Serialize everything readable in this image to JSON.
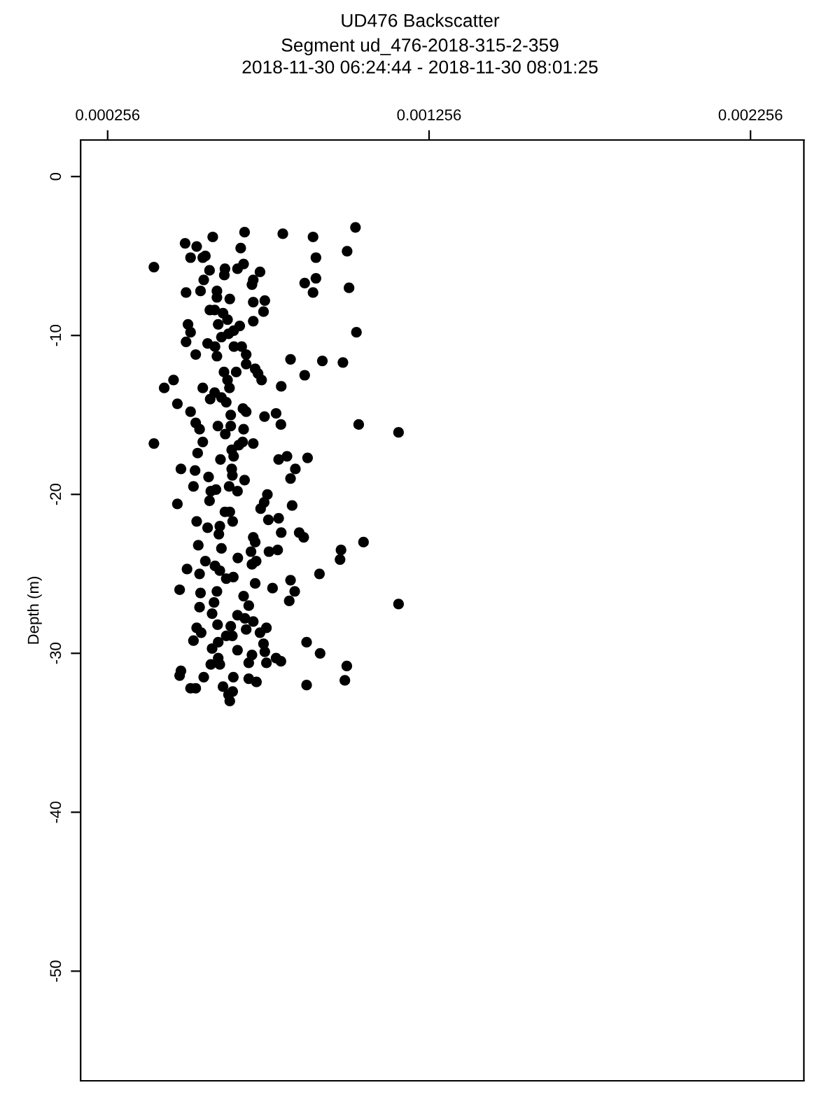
{
  "chart_data": {
    "type": "scatter",
    "title": "UD476 Backscatter",
    "subtitle": "Segment ud_476-2018-315-2-359\n2018-11-30 06:24:44 - 2018-11-30 08:01:25",
    "ylabel": "Depth (m)",
    "xlim": [
      0.000172,
      0.002422
    ],
    "xticks": [
      0.000256,
      0.001256,
      0.002256
    ],
    "ylim": [
      -56.9,
      2.3
    ],
    "yticks": [
      0,
      -10,
      -20,
      -30,
      -40,
      -50
    ],
    "marker": "circle",
    "series": [
      {
        "color": "#000000",
        "x": [
          0.001027,
          0.000682,
          0.000801,
          0.000895,
          0.000583,
          0.000497,
          0.000533,
          0.00067,
          0.001001,
          0.000514,
          0.000552,
          0.00056,
          0.000904,
          0.0004,
          0.000679,
          0.00066,
          0.00073,
          0.000573,
          0.000621,
          0.000619,
          0.000555,
          0.000904,
          0.000869,
          0.000709,
          0.000705,
          0.001007,
          0.0005,
          0.000545,
          0.000596,
          0.000895,
          0.000636,
          0.000596,
          0.000745,
          0.000709,
          0.000574,
          0.000589,
          0.000615,
          0.000741,
          0.000629,
          0.0006,
          0.000506,
          0.000709,
          0.000667,
          0.000648,
          0.000514,
          0.000632,
          0.00061,
          0.0005,
          0.00103,
          0.000567,
          0.00059,
          0.000649,
          0.000673,
          0.000596,
          0.00053,
          0.000687,
          0.000687,
          0.000825,
          0.000924,
          0.000988,
          0.000715,
          0.000618,
          0.000656,
          0.000724,
          0.000869,
          0.000461,
          0.000629,
          0.000735,
          0.000432,
          0.000552,
          0.000796,
          0.000635,
          0.000589,
          0.000575,
          0.00061,
          0.000473,
          0.000625,
          0.000677,
          0.000514,
          0.000687,
          0.000639,
          0.000744,
          0.00078,
          0.00053,
          0.000795,
          0.000599,
          0.000639,
          0.000542,
          0.000679,
          0.001037,
          0.001161,
          0.000622,
          0.0004,
          0.000552,
          0.000676,
          0.000709,
          0.000642,
          0.000664,
          0.000536,
          0.000607,
          0.000648,
          0.000788,
          0.000814,
          0.000878,
          0.000484,
          0.000528,
          0.00057,
          0.000642,
          0.000644,
          0.00084,
          0.000825,
          0.000523,
          0.000593,
          0.000577,
          0.000634,
          0.00066,
          0.000682,
          0.000473,
          0.000573,
          0.000753,
          0.000743,
          0.000732,
          0.00083,
          0.000621,
          0.000636,
          0.000645,
          0.000533,
          0.000567,
          0.000605,
          0.000602,
          0.000756,
          0.000788,
          0.000796,
          0.000852,
          0.000866,
          0.000709,
          0.000715,
          0.000538,
          0.00061,
          0.000702,
          0.000661,
          0.000758,
          0.000785,
          0.00056,
          0.00059,
          0.000605,
          0.000718,
          0.000705,
          0.000982,
          0.000979,
          0.001052,
          0.000503,
          0.000542,
          0.000625,
          0.000647,
          0.000915,
          0.000825,
          0.000715,
          0.00048,
          0.000545,
          0.000596,
          0.000679,
          0.000769,
          0.000838,
          0.000821,
          0.001161,
          0.000587,
          0.000542,
          0.000581,
          0.000695,
          0.00066,
          0.000683,
          0.000709,
          0.000598,
          0.000533,
          0.000639,
          0.000687,
          0.00075,
          0.00073,
          0.000547,
          0.000523,
          0.0006,
          0.000625,
          0.000644,
          0.000581,
          0.00066,
          0.000741,
          0.000745,
          0.000875,
          0.000917,
          0.000705,
          0.0006,
          0.000577,
          0.000605,
          0.000695,
          0.00075,
          0.00078,
          0.000795,
          0.001,
          0.000484,
          0.00048,
          0.000555,
          0.000647,
          0.000695,
          0.000719,
          0.000994,
          0.000875,
          0.000514,
          0.00053,
          0.000615,
          0.000632,
          0.000645,
          0.000636
        ],
        "values": [
          -3.2,
          -3.5,
          -3.6,
          -3.8,
          -3.8,
          -4.2,
          -4.4,
          -4.5,
          -4.7,
          -5.1,
          -5.1,
          -5.0,
          -5.1,
          -5.7,
          -5.5,
          -5.8,
          -6.0,
          -5.9,
          -5.8,
          -6.2,
          -6.5,
          -6.4,
          -6.7,
          -6.5,
          -6.8,
          -7.0,
          -7.3,
          -7.2,
          -7.2,
          -7.3,
          -7.7,
          -7.6,
          -7.8,
          -7.9,
          -8.4,
          -8.4,
          -8.6,
          -8.5,
          -9.0,
          -9.3,
          -9.3,
          -9.1,
          -9.4,
          -9.7,
          -9.8,
          -9.9,
          -10.1,
          -10.4,
          -9.8,
          -10.5,
          -10.7,
          -10.7,
          -10.7,
          -11.3,
          -11.2,
          -11.2,
          -11.8,
          -11.5,
          -11.6,
          -11.7,
          -12.1,
          -12.3,
          -12.3,
          -12.4,
          -12.5,
          -12.8,
          -12.8,
          -12.8,
          -13.3,
          -13.3,
          -13.2,
          -13.3,
          -13.6,
          -14.0,
          -13.9,
          -14.3,
          -14.2,
          -14.6,
          -14.8,
          -14.8,
          -15.0,
          -15.1,
          -14.9,
          -15.5,
          -15.6,
          -15.7,
          -15.7,
          -15.9,
          -15.9,
          -15.6,
          -16.1,
          -16.2,
          -16.8,
          -16.7,
          -16.7,
          -16.8,
          -17.2,
          -16.9,
          -17.4,
          -17.8,
          -17.6,
          -17.8,
          -17.6,
          -17.7,
          -18.4,
          -18.5,
          -18.9,
          -18.4,
          -18.8,
          -18.4,
          -19.0,
          -19.5,
          -19.7,
          -19.8,
          -19.5,
          -19.8,
          -19.1,
          -20.6,
          -20.4,
          -20.0,
          -20.5,
          -20.9,
          -20.7,
          -21.1,
          -21.1,
          -21.7,
          -21.7,
          -22.1,
          -22.0,
          -22.5,
          -21.6,
          -21.5,
          -22.4,
          -22.4,
          -22.7,
          -22.7,
          -23.0,
          -23.2,
          -23.4,
          -23.6,
          -24.0,
          -23.6,
          -23.5,
          -24.2,
          -24.5,
          -24.8,
          -24.2,
          -24.4,
          -23.5,
          -24.1,
          -23.0,
          -24.7,
          -25.0,
          -25.3,
          -25.2,
          -25.0,
          -25.4,
          -25.6,
          -26.0,
          -26.2,
          -26.1,
          -26.4,
          -25.9,
          -26.1,
          -26.7,
          -26.9,
          -26.8,
          -27.1,
          -27.5,
          -27.0,
          -27.6,
          -27.8,
          -28.0,
          -28.2,
          -28.4,
          -28.3,
          -28.5,
          -28.4,
          -28.7,
          -28.7,
          -29.2,
          -29.3,
          -28.9,
          -28.9,
          -29.7,
          -29.8,
          -29.4,
          -29.9,
          -29.3,
          -30.0,
          -30.1,
          -30.3,
          -30.7,
          -30.7,
          -30.6,
          -30.6,
          -30.3,
          -30.5,
          -30.8,
          -31.1,
          -31.4,
          -31.5,
          -31.5,
          -31.6,
          -31.8,
          -31.7,
          -32.0,
          -32.2,
          -32.2,
          -32.1,
          -32.6,
          -32.4,
          -33.0
        ]
      }
    ]
  }
}
